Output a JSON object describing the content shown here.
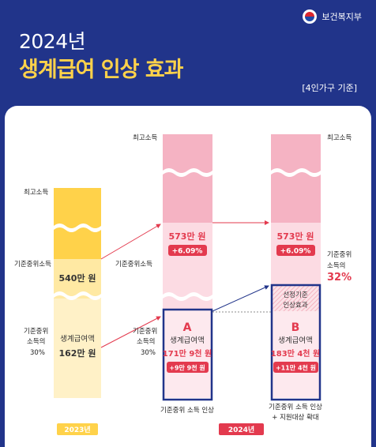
{
  "header": {
    "ministry": "보건복지부",
    "year_title": "2024년",
    "main_title": "생계급여 인상 효과",
    "note": "[4인가구 기준]"
  },
  "chart_data": {
    "type": "bar",
    "title": "생계급여 인상 효과",
    "categories": [
      "2023년",
      "2024년 (기준중위 소득 인상)",
      "2024년 (기준중위 소득 인상 + 지원대상 확대)"
    ],
    "bars": [
      {
        "id": "col-2023",
        "median_income_label": "540만 원",
        "benefit_letter": "",
        "benefit_title": "생계급여액",
        "benefit_amount": "162만 원",
        "benefit_increase": "",
        "ratio_label": "기준중위 소득의 30%",
        "note_box": "",
        "pct_change": ""
      },
      {
        "id": "col-2024a",
        "median_income_label": "573만 원",
        "pct_change": "+6.09%",
        "benefit_letter": "A",
        "benefit_title": "생계급여액",
        "benefit_amount": "171만 9천 원",
        "benefit_increase": "+9만 9천 원",
        "ratio_label": "기준중위 소득의 30%",
        "note_box": ""
      },
      {
        "id": "col-2024b",
        "median_income_label": "573만 원",
        "pct_change": "+6.09%",
        "benefit_letter": "B",
        "benefit_title": "생계급여액",
        "benefit_amount": "183만 4천 원",
        "benefit_increase": "+11만 4천 원",
        "ratio_label": "기준중위 소득의 32%",
        "note_box": "선정기준 인상효과"
      }
    ],
    "values_manwon": {
      "median_2023": 540,
      "median_2024": 573,
      "benefit_2023": 162,
      "benefit_2024a": 171.9,
      "benefit_2024b": 183.4
    },
    "left_labels": {
      "top_income": "최고소득",
      "median": "기준중위소득",
      "ratio_30_line1": "기준중위",
      "ratio_30_line2": "소득의",
      "ratio_30_line3": "30%"
    },
    "right_labels": {
      "top_income": "최고소득",
      "ratio_32_line1": "기준중위",
      "ratio_32_line2": "소득의",
      "ratio_32_line3": "32%"
    },
    "x_labels": {
      "a": "기준중위 소득 인상",
      "b_line1": "기준중위 소득 인상",
      "b_line2": "+ 지원대상 확대"
    },
    "year_badges": [
      "2023년",
      "2024년"
    ],
    "colors": {
      "navy": "#21348a",
      "yellow": "#ffd24a",
      "pink": "#f5b3c3",
      "red": "#e33a4e"
    }
  }
}
